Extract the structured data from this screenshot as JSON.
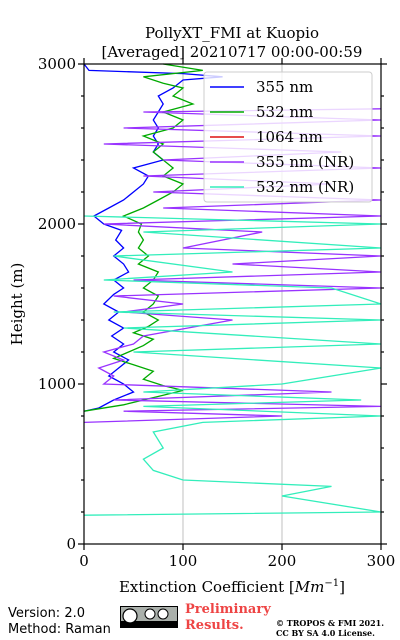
{
  "chart_data": {
    "type": "line",
    "title": "PollyXT_FMI at Kuopio",
    "subtitle": "[Averaged] 20210717 00:00-00:59",
    "xlabel": "Extinction Coefficient [Mm^-1]",
    "ylabel": "Height (m)",
    "xlim": [
      0,
      300
    ],
    "ylim": [
      0,
      3000
    ],
    "xticks": [
      "0",
      "100",
      "200",
      "300"
    ],
    "yticks": [
      "0",
      "1000",
      "2000",
      "3000"
    ],
    "grid": "vertical",
    "legend_position": "top-right",
    "series": [
      {
        "name": "355 nm",
        "color": "#0000ff",
        "points": [
          [
            0,
            830
          ],
          [
            15,
            850
          ],
          [
            30,
            900
          ],
          [
            50,
            950
          ],
          [
            40,
            1000
          ],
          [
            25,
            1050
          ],
          [
            35,
            1100
          ],
          [
            45,
            1150
          ],
          [
            30,
            1200
          ],
          [
            40,
            1250
          ],
          [
            28,
            1300
          ],
          [
            40,
            1350
          ],
          [
            25,
            1400
          ],
          [
            35,
            1450
          ],
          [
            20,
            1500
          ],
          [
            30,
            1560
          ],
          [
            40,
            1600
          ],
          [
            30,
            1650
          ],
          [
            45,
            1700
          ],
          [
            40,
            1750
          ],
          [
            30,
            1800
          ],
          [
            40,
            1850
          ],
          [
            32,
            1900
          ],
          [
            38,
            1960
          ],
          [
            20,
            2000
          ],
          [
            10,
            2050
          ],
          [
            25,
            2100
          ],
          [
            40,
            2150
          ],
          [
            50,
            2200
          ],
          [
            60,
            2250
          ],
          [
            65,
            2300
          ],
          [
            50,
            2350
          ],
          [
            80,
            2400
          ],
          [
            70,
            2450
          ],
          [
            75,
            2500
          ],
          [
            70,
            2550
          ],
          [
            75,
            2600
          ],
          [
            70,
            2650
          ],
          [
            75,
            2700
          ],
          [
            80,
            2750
          ],
          [
            75,
            2800
          ],
          [
            90,
            2850
          ],
          [
            100,
            2900
          ],
          [
            140,
            2920
          ],
          [
            100,
            2940
          ],
          [
            5,
            2960
          ],
          [
            0,
            3000
          ]
        ]
      },
      {
        "name": "532 nm",
        "color": "#00aa00",
        "points": [
          [
            0,
            830
          ],
          [
            40,
            870
          ],
          [
            60,
            900
          ],
          [
            80,
            930
          ],
          [
            100,
            960
          ],
          [
            80,
            990
          ],
          [
            60,
            1030
          ],
          [
            70,
            1080
          ],
          [
            50,
            1120
          ],
          [
            30,
            1160
          ],
          [
            45,
            1200
          ],
          [
            60,
            1240
          ],
          [
            70,
            1280
          ],
          [
            50,
            1320
          ],
          [
            65,
            1360
          ],
          [
            75,
            1400
          ],
          [
            60,
            1450
          ],
          [
            70,
            1500
          ],
          [
            75,
            1550
          ],
          [
            60,
            1600
          ],
          [
            70,
            1650
          ],
          [
            75,
            1700
          ],
          [
            55,
            1750
          ],
          [
            65,
            1800
          ],
          [
            55,
            1850
          ],
          [
            60,
            1900
          ],
          [
            55,
            1950
          ],
          [
            58,
            2000
          ],
          [
            40,
            2050
          ],
          [
            60,
            2100
          ],
          [
            75,
            2150
          ],
          [
            90,
            2200
          ],
          [
            100,
            2250
          ],
          [
            80,
            2300
          ],
          [
            90,
            2350
          ],
          [
            80,
            2400
          ],
          [
            70,
            2450
          ],
          [
            80,
            2500
          ],
          [
            60,
            2550
          ],
          [
            90,
            2600
          ],
          [
            100,
            2650
          ],
          [
            80,
            2700
          ],
          [
            110,
            2750
          ],
          [
            90,
            2800
          ],
          [
            100,
            2850
          ],
          [
            80,
            2880
          ],
          [
            60,
            2920
          ],
          [
            120,
            2960
          ],
          [
            80,
            3000
          ]
        ]
      },
      {
        "name": "1064 nm",
        "color": "#dd1111",
        "points": []
      },
      {
        "name": "355 nm (NR)",
        "color": "#9933ff",
        "points": [
          [
            0,
            760
          ],
          [
            200,
            800
          ],
          [
            40,
            830
          ],
          [
            300,
            860
          ],
          [
            30,
            900
          ],
          [
            250,
            950
          ],
          [
            20,
            1000
          ],
          [
            30,
            1050
          ],
          [
            15,
            1100
          ],
          [
            40,
            1150
          ],
          [
            20,
            1200
          ],
          [
            50,
            1250
          ],
          [
            60,
            1300
          ],
          [
            150,
            1400
          ],
          [
            40,
            1450
          ],
          [
            100,
            1500
          ],
          [
            30,
            1550
          ],
          [
            300,
            1600
          ],
          [
            50,
            1650
          ],
          [
            300,
            1700
          ],
          [
            150,
            1750
          ],
          [
            300,
            1800
          ],
          [
            100,
            1850
          ],
          [
            180,
            1950
          ],
          [
            20,
            2000
          ],
          [
            300,
            2050
          ],
          [
            80,
            2100
          ],
          [
            300,
            2150
          ],
          [
            70,
            2200
          ],
          [
            250,
            2250
          ],
          [
            60,
            2300
          ],
          [
            300,
            2350
          ],
          [
            80,
            2400
          ],
          [
            260,
            2450
          ],
          [
            20,
            2500
          ],
          [
            300,
            2550
          ],
          [
            40,
            2600
          ],
          [
            300,
            2650
          ],
          [
            60,
            2700
          ],
          [
            300,
            2720
          ]
        ]
      },
      {
        "name": "532 nm (NR)",
        "color": "#33eebb",
        "points": [
          [
            0,
            180
          ],
          [
            300,
            200
          ],
          [
            200,
            300
          ],
          [
            250,
            360
          ],
          [
            100,
            400
          ],
          [
            70,
            460
          ],
          [
            60,
            530
          ],
          [
            80,
            600
          ],
          [
            70,
            700
          ],
          [
            120,
            760
          ],
          [
            300,
            800
          ],
          [
            60,
            860
          ],
          [
            280,
            900
          ],
          [
            60,
            950
          ],
          [
            200,
            1000
          ],
          [
            300,
            1100
          ],
          [
            50,
            1200
          ],
          [
            300,
            1250
          ],
          [
            40,
            1350
          ],
          [
            300,
            1400
          ],
          [
            30,
            1450
          ],
          [
            300,
            1500
          ],
          [
            250,
            1600
          ],
          [
            20,
            1650
          ],
          [
            150,
            1700
          ],
          [
            30,
            1800
          ],
          [
            300,
            1850
          ],
          [
            60,
            1950
          ],
          [
            300,
            2000
          ],
          [
            0,
            2050
          ]
        ]
      }
    ]
  },
  "footer": {
    "version": "Version: 2.0",
    "method": "Method: Raman",
    "preliminary_line1": "Preliminary",
    "preliminary_line2": "Results.",
    "copyright_line1": "© TROPOS & FMI 2021.",
    "copyright_line2": "CC BY SA 4.0 License."
  }
}
